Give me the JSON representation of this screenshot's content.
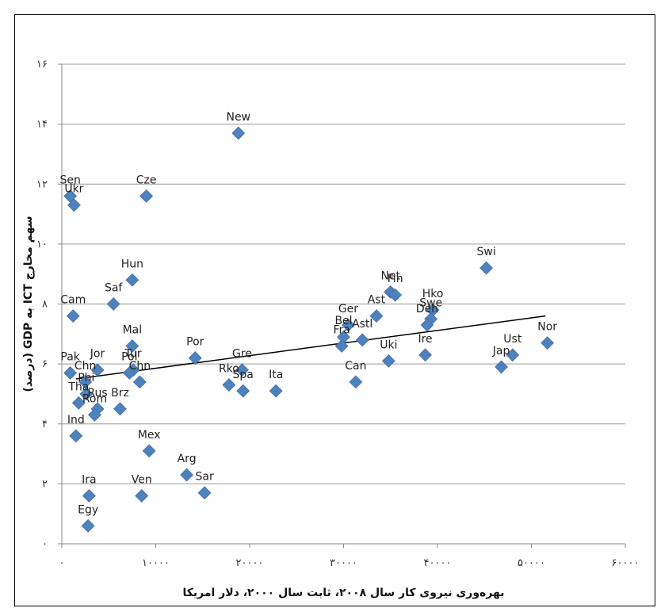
{
  "chart_data": {
    "type": "scatter",
    "xlabel": "بهره‌وری نیروی کار سال ۲۰۰۸، ثابت سال ۲۰۰۰، دلار امریکا",
    "ylabel": "سهم مخارج ICT به GDP (درصد)",
    "xlim": [
      0,
      60000
    ],
    "ylim": [
      0,
      16
    ],
    "x_ticks": [
      0,
      10000,
      20000,
      30000,
      40000,
      50000,
      60000
    ],
    "x_tick_labels": [
      "۰",
      "۱۰۰۰۰",
      "۲۰۰۰۰",
      "۳۰۰۰۰",
      "۴۰۰۰۰",
      "۵۰۰۰۰",
      "۶۰۰۰۰"
    ],
    "y_ticks": [
      0,
      2,
      4,
      6,
      8,
      10,
      12,
      14,
      16
    ],
    "y_tick_labels": [
      "۰",
      "۲",
      "۴",
      "۶",
      "۸",
      "۱۰",
      "۱۲",
      "۱۴",
      "۱۶"
    ],
    "grid": "horizontal",
    "marker_color": "#4f81bd",
    "trendline_color": "#000000",
    "trendline": [
      [
        1500,
        5.5
      ],
      [
        51500,
        7.6
      ]
    ],
    "points": [
      {
        "label": "New",
        "x": 18800,
        "y": 13.7
      },
      {
        "label": "Sen",
        "x": 900,
        "y": 11.6
      },
      {
        "label": "Ukr",
        "x": 1300,
        "y": 11.3
      },
      {
        "label": "Cze",
        "x": 9000,
        "y": 11.6
      },
      {
        "label": "Hun",
        "x": 7500,
        "y": 8.8
      },
      {
        "label": "Saf",
        "x": 5500,
        "y": 8.0
      },
      {
        "label": "Cam",
        "x": 1200,
        "y": 7.6
      },
      {
        "label": "Mal",
        "x": 7500,
        "y": 6.6
      },
      {
        "label": "Pak",
        "x": 900,
        "y": 5.7
      },
      {
        "label": "Jor",
        "x": 3800,
        "y": 5.8
      },
      {
        "label": "Chn",
        "x": 2500,
        "y": 5.4
      },
      {
        "label": "Tur",
        "x": 7600,
        "y": 5.8
      },
      {
        "label": "Chn",
        "x": 8300,
        "y": 5.4
      },
      {
        "label": "Pol",
        "x": 7200,
        "y": 5.7
      },
      {
        "label": "Phi",
        "x": 2600,
        "y": 5.0
      },
      {
        "label": "Tha",
        "x": 1800,
        "y": 4.7
      },
      {
        "label": "Rus",
        "x": 3800,
        "y": 4.5
      },
      {
        "label": "Rom",
        "x": 3500,
        "y": 4.3
      },
      {
        "label": "Brz",
        "x": 6200,
        "y": 4.5
      },
      {
        "label": "Ind",
        "x": 1500,
        "y": 3.6
      },
      {
        "label": "Mex",
        "x": 9300,
        "y": 3.1
      },
      {
        "label": "Arg",
        "x": 13300,
        "y": 2.3
      },
      {
        "label": "Sar",
        "x": 15200,
        "y": 1.7
      },
      {
        "label": "Ven",
        "x": 8500,
        "y": 1.6
      },
      {
        "label": "Ira",
        "x": 2900,
        "y": 1.6
      },
      {
        "label": "Egy",
        "x": 2800,
        "y": 0.6
      },
      {
        "label": "Por",
        "x": 14200,
        "y": 6.2
      },
      {
        "label": "Rko",
        "x": 17800,
        "y": 5.3
      },
      {
        "label": "Gre",
        "x": 19200,
        "y": 5.8
      },
      {
        "label": "Spa",
        "x": 19300,
        "y": 5.1
      },
      {
        "label": "Ita",
        "x": 22800,
        "y": 5.1
      },
      {
        "label": "Bel",
        "x": 30000,
        "y": 6.9
      },
      {
        "label": "Ger",
        "x": 30500,
        "y": 7.3
      },
      {
        "label": "Ast",
        "x": 33500,
        "y": 7.6
      },
      {
        "label": "Fra",
        "x": 29800,
        "y": 6.6
      },
      {
        "label": "Astl",
        "x": 32000,
        "y": 6.8
      },
      {
        "label": "Can",
        "x": 31300,
        "y": 5.4
      },
      {
        "label": "Uki",
        "x": 34800,
        "y": 6.1
      },
      {
        "label": "Net",
        "x": 35000,
        "y": 8.4
      },
      {
        "label": "Fin",
        "x": 35500,
        "y": 8.3
      },
      {
        "label": "Hko",
        "x": 39500,
        "y": 7.8
      },
      {
        "label": "Swe",
        "x": 39300,
        "y": 7.5
      },
      {
        "label": "Den",
        "x": 38900,
        "y": 7.3
      },
      {
        "label": "Ire",
        "x": 38700,
        "y": 6.3
      },
      {
        "label": "Swi",
        "x": 45200,
        "y": 9.2
      },
      {
        "label": "Jap",
        "x": 46800,
        "y": 5.9
      },
      {
        "label": "Ust",
        "x": 48000,
        "y": 6.3
      },
      {
        "label": "Nor",
        "x": 51700,
        "y": 6.7
      }
    ]
  }
}
